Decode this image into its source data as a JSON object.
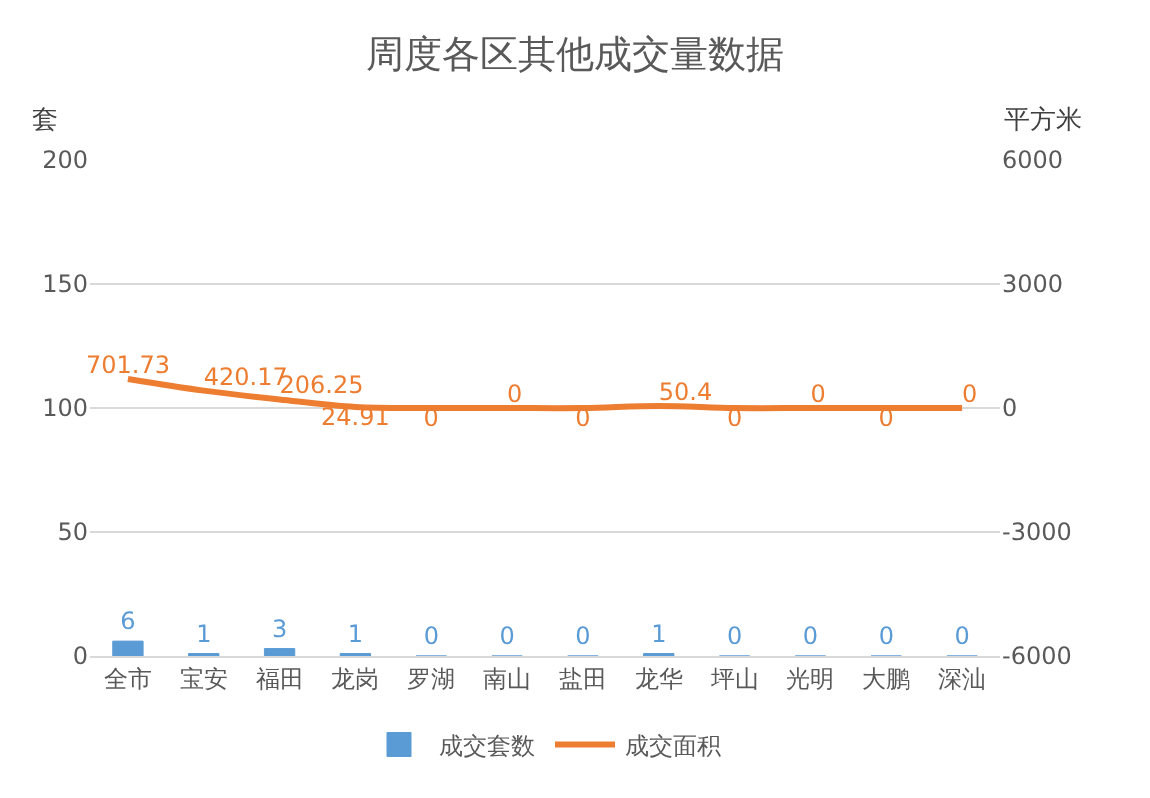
{
  "chart_data": {
    "type": "bar",
    "title": "周度各区其他成交量数据",
    "ylabel": "套",
    "y2label": "平方米",
    "categories": [
      "全市",
      "宝安",
      "福田",
      "龙岗",
      "罗湖",
      "南山",
      "盐田",
      "龙华",
      "坪山",
      "光明",
      "大鹏",
      "深汕"
    ],
    "series": [
      {
        "name": "成交套数",
        "color": "#5b9bd5",
        "values": [
          6,
          1,
          3,
          1,
          0,
          0,
          0,
          1,
          0,
          0,
          0,
          0
        ]
      },
      {
        "name": "成交面积",
        "type": "line",
        "axis": "y2",
        "color": "#ed7d31",
        "values": [
          701.73,
          420.17,
          206.25,
          24.91,
          0,
          0,
          0,
          50.4,
          0,
          0,
          0,
          0
        ]
      }
    ],
    "ylim": [
      0,
      200
    ],
    "yticks": [
      0,
      50,
      100,
      150,
      200
    ],
    "y2lim": [
      -6000,
      6000
    ],
    "y2ticks": [
      -6000,
      -3000,
      0,
      3000,
      6000
    ],
    "grid": "y",
    "legend": "bottom",
    "data_labels": true,
    "marker": "none"
  }
}
